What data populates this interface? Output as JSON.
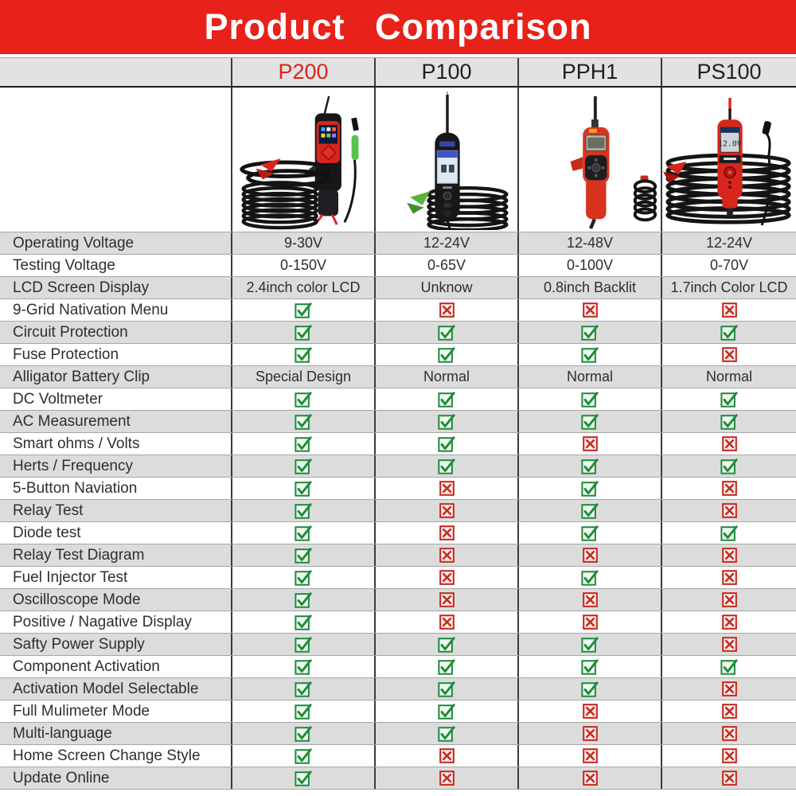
{
  "title": "Product Comparison",
  "chart_data": {
    "type": "table",
    "title": "Product Comparison",
    "columns": [
      "P200",
      "P100",
      "PPH1",
      "PS100"
    ],
    "accent_column": "P200",
    "rows": [
      {
        "label": "Operating Voltage",
        "values": [
          "9-30V",
          "12-24V",
          "12-48V",
          "12-24V"
        ]
      },
      {
        "label": "Testing Voltage",
        "values": [
          "0-150V",
          "0-65V",
          "0-100V",
          "0-70V"
        ]
      },
      {
        "label": "LCD Screen Display",
        "values": [
          "2.4inch color LCD",
          "Unknow",
          "0.8inch Backlit",
          "1.7inch Color LCD"
        ]
      },
      {
        "label": "9-Grid Nativation Menu",
        "values": [
          true,
          false,
          false,
          false
        ]
      },
      {
        "label": "Circuit Protection",
        "values": [
          true,
          true,
          true,
          true
        ]
      },
      {
        "label": "Fuse Protection",
        "values": [
          true,
          true,
          true,
          false
        ]
      },
      {
        "label": "Alligator Battery Clip",
        "values": [
          "Special Design",
          "Normal",
          "Normal",
          "Normal"
        ]
      },
      {
        "label": "DC Voltmeter",
        "values": [
          true,
          true,
          true,
          true
        ]
      },
      {
        "label": "AC Measurement",
        "values": [
          true,
          true,
          true,
          true
        ]
      },
      {
        "label": "Smart ohms / Volts",
        "values": [
          true,
          true,
          false,
          false
        ]
      },
      {
        "label": "Herts / Frequency",
        "values": [
          true,
          true,
          true,
          true
        ]
      },
      {
        "label": "5-Button Naviation",
        "values": [
          true,
          false,
          true,
          false
        ]
      },
      {
        "label": "Relay Test",
        "values": [
          true,
          false,
          true,
          false
        ]
      },
      {
        "label": "Diode test",
        "values": [
          true,
          false,
          true,
          true
        ]
      },
      {
        "label": "Relay Test Diagram",
        "values": [
          true,
          false,
          false,
          false
        ]
      },
      {
        "label": "Fuel Injector Test",
        "values": [
          true,
          false,
          true,
          false
        ]
      },
      {
        "label": "Oscilloscope Mode",
        "values": [
          true,
          false,
          false,
          false
        ]
      },
      {
        "label": "Positive / Nagative Display",
        "values": [
          true,
          false,
          false,
          false
        ]
      },
      {
        "label": "Safty Power Supply",
        "values": [
          true,
          true,
          true,
          false
        ]
      },
      {
        "label": "Component Activation",
        "values": [
          true,
          true,
          true,
          true
        ]
      },
      {
        "label": "Activation Model Selectable",
        "values": [
          true,
          true,
          true,
          false
        ]
      },
      {
        "label": "Full Mulimeter Mode",
        "values": [
          true,
          true,
          false,
          false
        ]
      },
      {
        "label": "Multi-language",
        "values": [
          true,
          true,
          false,
          false
        ]
      },
      {
        "label": "Home Screen Change Style",
        "values": [
          true,
          false,
          false,
          false
        ]
      },
      {
        "label": "Update Online",
        "values": [
          true,
          false,
          false,
          false
        ]
      }
    ]
  },
  "product_images": {
    "ps100_screen_text": "12.0V"
  },
  "icons": {
    "yes": "check-icon",
    "no": "cross-icon"
  },
  "colors": {
    "banner_red": "#e8211a",
    "accent_red": "#d9251d",
    "row_gray": "#dcdcdc",
    "header_gray": "#e2e2e2",
    "check_green": "#1f8a3c",
    "check_bg": "#effaee",
    "cross_red": "#c52b20",
    "cross_bg": "#fdf1f0",
    "text_dark": "#2e2e2e"
  }
}
